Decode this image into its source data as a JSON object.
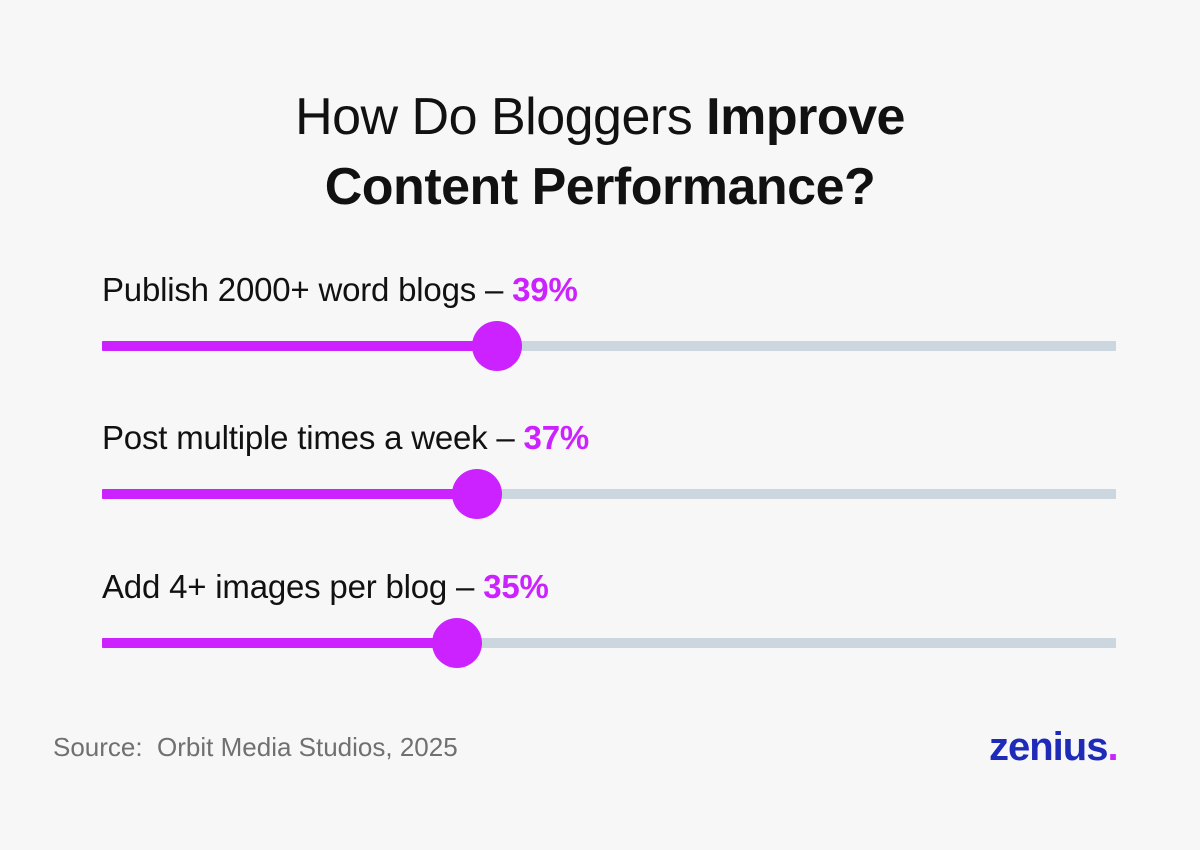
{
  "title": {
    "regular": "How Do Bloggers ",
    "bold_1": "Improve",
    "bold_2": "Content Performance?"
  },
  "chart_data": {
    "type": "bar",
    "orientation": "horizontal",
    "unit": "%",
    "xlim": [
      0,
      100
    ],
    "categories": [
      "Publish 2000+ word blogs",
      "Post multiple times a week",
      "Add 4+ images per blog"
    ],
    "values": [
      39,
      37,
      35
    ],
    "value_labels": [
      "39%",
      "37%",
      "35%"
    ],
    "separator": " – ",
    "grid": false,
    "legend": "none",
    "colors": {
      "fill": "#cc22ff",
      "track": "#ccd6df",
      "value_text": "#cc22ff"
    }
  },
  "source": "Source:  Orbit Media Studios, 2025",
  "logo": {
    "text": "zenius",
    "dot": ".",
    "color": "#1d2bb8",
    "dot_color": "#cc22ff"
  }
}
